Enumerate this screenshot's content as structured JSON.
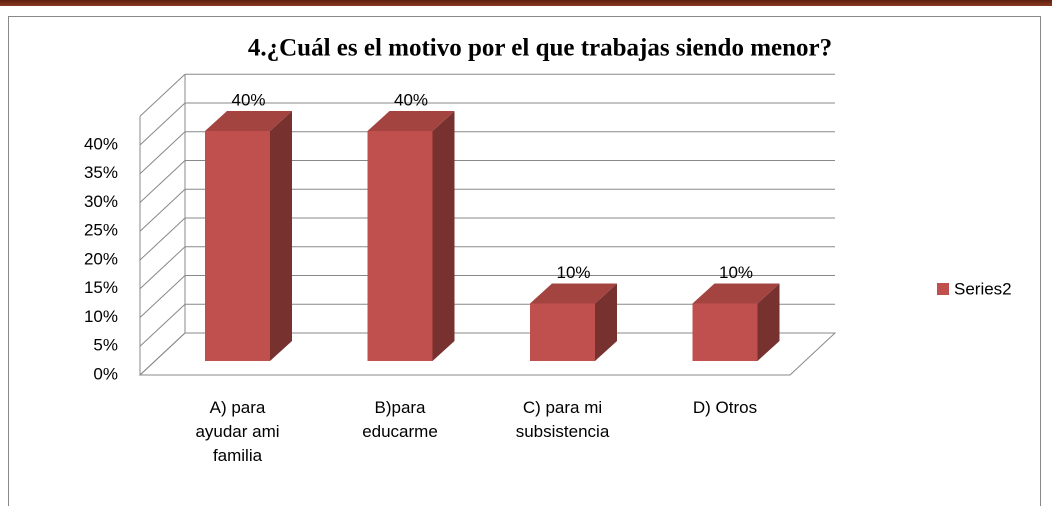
{
  "chart_data": {
    "type": "bar3d",
    "title": "4.¿Cuál es el motivo por el que trabajas siendo menor?",
    "categories": [
      "A) para ayudar ami familia",
      "B)para educarme",
      "C) para mi subsistencia",
      "D) Otros"
    ],
    "series": [
      {
        "name": "Series2",
        "color": "#c0504d",
        "values": [
          40,
          40,
          10,
          10
        ],
        "value_labels": [
          "40%",
          "40%",
          "10%",
          "10%"
        ]
      }
    ],
    "ylim": [
      0,
      45
    ],
    "yticks": [
      {
        "value": 0,
        "label": "0%"
      },
      {
        "value": 5,
        "label": "5%"
      },
      {
        "value": 10,
        "label": "10%"
      },
      {
        "value": 15,
        "label": "15%"
      },
      {
        "value": 20,
        "label": "20%"
      },
      {
        "value": 25,
        "label": "25%"
      },
      {
        "value": 30,
        "label": "30%"
      },
      {
        "value": 35,
        "label": "35%"
      },
      {
        "value": 40,
        "label": "40%"
      }
    ],
    "grid": true,
    "legend": "right"
  }
}
